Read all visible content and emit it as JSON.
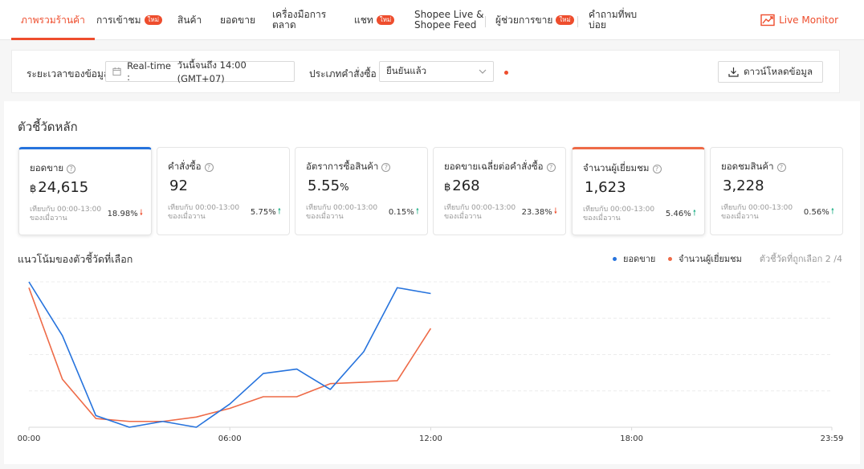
{
  "nav": {
    "items": [
      {
        "label": "ภาพรวมร้านค้า",
        "badge": ""
      },
      {
        "label": "การเข้าชม",
        "badge": "ใหม่"
      },
      {
        "label": "สินค้า",
        "badge": ""
      },
      {
        "label": "ยอดขาย",
        "badge": ""
      },
      {
        "label": "เครื่องมือการ",
        "label2": "ตลาด",
        "badge": ""
      },
      {
        "label": "แชท",
        "badge": "ใหม่"
      },
      {
        "label": "Shopee Live &",
        "label2": "Shopee Feed",
        "badge": ""
      },
      {
        "label": "ผู้ช่วยการขาย",
        "badge": "ใหม่"
      },
      {
        "label": "คำถามที่พบ",
        "label2": "บ่อย",
        "badge": ""
      }
    ],
    "live_monitor": "Live Monitor",
    "accent": "#ee4d2d"
  },
  "filter": {
    "time_label": "ระยะเวลาของข้อมูล",
    "time_value_prefix": "Real-time :",
    "time_value": "วันนี้จนถึง 14:00 (GMT+07)",
    "order_type_label": "ประเภทคำสั่งซื้อ",
    "order_type_value": "ยืนยันแล้ว",
    "download_label": "ดาวน์โหลดข้อมูล"
  },
  "metrics": {
    "title": "ตัวชี้วัดหลัก",
    "cards": [
      {
        "label": "ยอดขาย",
        "currency": "฿",
        "value": "24,615",
        "unit": "",
        "compare": "เทียบกับ 00:00-13:00 ของเมื่อวาน",
        "pct": "18.98%",
        "dir": "down",
        "selected": "blue"
      },
      {
        "label": "คำสั่งซื้อ",
        "currency": "",
        "value": "92",
        "unit": "",
        "compare": "เทียบกับ 00:00-13:00 ของเมื่อวาน",
        "pct": "5.75%",
        "dir": "up",
        "selected": ""
      },
      {
        "label": "อัตราการซื้อสินค้า",
        "currency": "",
        "value": "5.55",
        "unit": "%",
        "compare": "เทียบกับ 00:00-13:00 ของเมื่อวาน",
        "pct": "0.15%",
        "dir": "up",
        "selected": ""
      },
      {
        "label": "ยอดขายเฉลี่ยต่อคำสั่งซื้อ",
        "currency": "฿",
        "value": "268",
        "unit": "",
        "compare": "เทียบกับ 00:00-13:00 ของเมื่อวาน",
        "pct": "23.38%",
        "dir": "down",
        "selected": ""
      },
      {
        "label": "จำนวนผู้เยี่ยมชม",
        "currency": "",
        "value": "1,623",
        "unit": "",
        "compare": "เทียบกับ 00:00-13:00 ของเมื่อวาน",
        "pct": "5.46%",
        "dir": "up",
        "selected": "orange"
      },
      {
        "label": "ยอดชมสินค้า",
        "currency": "",
        "value": "3,228",
        "unit": "",
        "compare": "เทียบกับ 00:00-13:00 ของเมื่อวาน",
        "pct": "0.56%",
        "dir": "up",
        "selected": ""
      }
    ]
  },
  "trend": {
    "title": "แนวโน้มของตัวชี้วัดที่เลือก",
    "selected_count": "ตัวชี้วัดที่ถูกเลือก 2 /4"
  },
  "chart_data": {
    "type": "line",
    "x": [
      0,
      1,
      2,
      3,
      4,
      5,
      6,
      7,
      8,
      9,
      10,
      11,
      12
    ],
    "x_ticks": [
      "00:00",
      "06:00",
      "12:00",
      "18:00",
      "23:59"
    ],
    "xlim": [
      0,
      23.98
    ],
    "ylim": [
      0,
      1
    ],
    "grid": true,
    "legend_position": "top-right",
    "series": [
      {
        "name": "ยอดขาย",
        "color": "#2673dd",
        "values": [
          1.0,
          0.63,
          0.08,
          0.0,
          0.04,
          0.0,
          0.16,
          0.37,
          0.4,
          0.26,
          0.52,
          0.96,
          0.92
        ]
      },
      {
        "name": "จำนวนผู้เยี่ยมชม",
        "color": "#ee6a47",
        "values": [
          0.96,
          0.33,
          0.06,
          0.04,
          0.04,
          0.07,
          0.13,
          0.21,
          0.21,
          0.3,
          0.31,
          0.32,
          0.68
        ]
      }
    ]
  }
}
